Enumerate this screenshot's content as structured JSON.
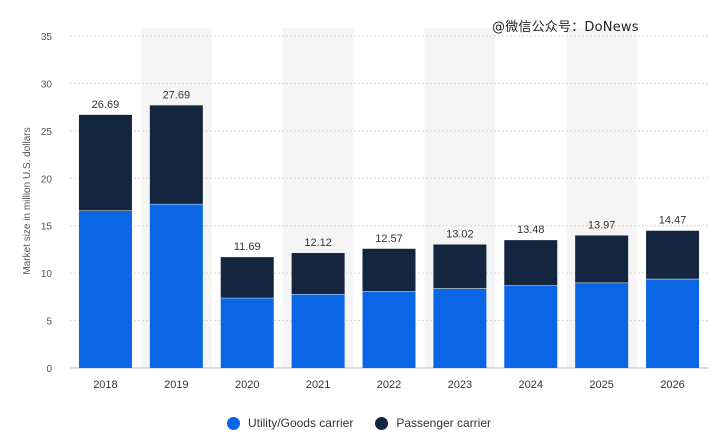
{
  "watermark": "@微信公众号：DoNews",
  "colors": {
    "utility": "#0a66e4",
    "passenger": "#13253f",
    "grid": "#d5d5d5",
    "shade": "#f5f5f5",
    "axis_text": "#555555",
    "label_text": "#333333"
  },
  "chart_data": {
    "type": "bar",
    "stacked": true,
    "title": "",
    "xlabel": "",
    "ylabel": "Market size in million U.S. dollars",
    "ylim": [
      0,
      35
    ],
    "yticks": [
      0,
      5,
      10,
      15,
      20,
      25,
      30,
      35
    ],
    "grid": true,
    "legend_position": "bottom-center",
    "categories": [
      "2018",
      "2019",
      "2020",
      "2021",
      "2022",
      "2023",
      "2024",
      "2025",
      "2026"
    ],
    "series": [
      {
        "name": "Utility/Goods carrier",
        "values": [
          16.6,
          17.3,
          7.4,
          7.8,
          8.1,
          8.4,
          8.7,
          9.0,
          9.4
        ]
      },
      {
        "name": "Passenger carrier",
        "values": [
          10.09,
          10.39,
          4.29,
          4.32,
          4.47,
          4.62,
          4.78,
          4.97,
          5.07
        ]
      }
    ],
    "totals": [
      "26.69",
      "27.69",
      "11.69",
      "12.12",
      "12.57",
      "13.02",
      "13.48",
      "13.97",
      "14.47"
    ]
  }
}
